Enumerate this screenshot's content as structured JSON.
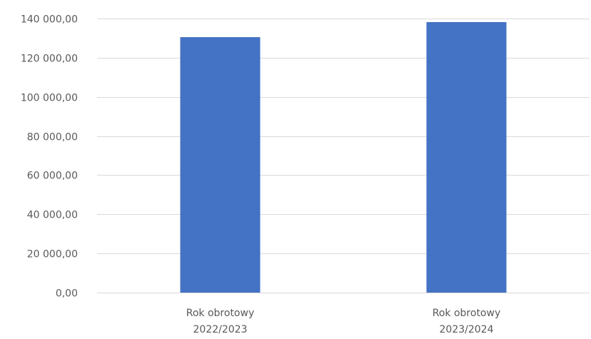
{
  "chart_data": {
    "type": "bar",
    "categories": [
      [
        "Rok obrotowy",
        "2022/2023"
      ],
      [
        "Rok obrotowy",
        "2023/2024"
      ]
    ],
    "values": [
      130500,
      138200
    ],
    "ylim": [
      0,
      140000
    ],
    "yticks": [
      0,
      20000,
      40000,
      60000,
      80000,
      100000,
      120000,
      140000
    ],
    "ytick_labels": [
      "0,00",
      "20 000,00",
      "40 000,00",
      "60 000,00",
      "80 000,00",
      "100 000,00",
      "120 000,00",
      "140 000,00"
    ],
    "grid": true,
    "legend": "none",
    "colors": {
      "bar": "#4472c4",
      "grid": "#d9d9d9",
      "axis_text": "#595959"
    }
  }
}
